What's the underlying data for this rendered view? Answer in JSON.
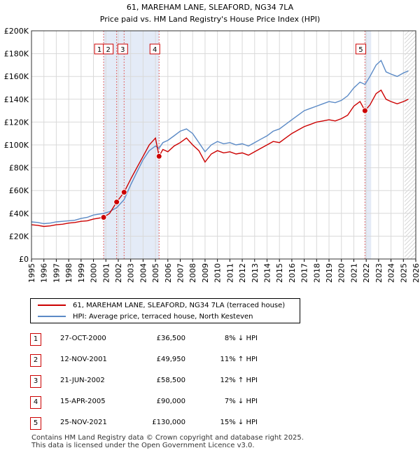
{
  "chart_data": {
    "type": "line",
    "title": "61, MAREHAM LANE, SLEAFORD, NG34 7LA",
    "subtitle": "Price paid vs. HM Land Registry's House Price Index (HPI)",
    "xlim": [
      1995,
      2026
    ],
    "ylim": [
      0,
      200000
    ],
    "x_ticks": [
      "1995",
      "1996",
      "1997",
      "1998",
      "1999",
      "2000",
      "2001",
      "2002",
      "2003",
      "2004",
      "2005",
      "2006",
      "2007",
      "2008",
      "2009",
      "2010",
      "2011",
      "2012",
      "2013",
      "2014",
      "2015",
      "2016",
      "2017",
      "2018",
      "2019",
      "2020",
      "2021",
      "2022",
      "2023",
      "2024",
      "2025",
      "2026"
    ],
    "y_ticks": [
      {
        "value": 0,
        "label": "£0"
      },
      {
        "value": 20000,
        "label": "£20K"
      },
      {
        "value": 40000,
        "label": "£40K"
      },
      {
        "value": 60000,
        "label": "£60K"
      },
      {
        "value": 80000,
        "label": "£80K"
      },
      {
        "value": 100000,
        "label": "£100K"
      },
      {
        "value": 120000,
        "label": "£120K"
      },
      {
        "value": 140000,
        "label": "£140K"
      },
      {
        "value": 160000,
        "label": "£160K"
      },
      {
        "value": 180000,
        "label": "£180K"
      },
      {
        "value": 200000,
        "label": "£200K"
      }
    ],
    "grid": true,
    "shaded_ranges": [
      [
        2000.82,
        2005.29
      ],
      [
        2021.9,
        2022.4
      ]
    ],
    "future_hatch_from": 2025.1,
    "series": [
      {
        "name": "61, MAREHAM LANE, SLEAFORD, NG34 7LA (terraced house)",
        "color": "#cc0000",
        "points": [
          [
            1995.0,
            30000
          ],
          [
            1995.5,
            29500
          ],
          [
            1996.0,
            28500
          ],
          [
            1996.5,
            29000
          ],
          [
            1997.0,
            30000
          ],
          [
            1997.5,
            30500
          ],
          [
            1998.0,
            31500
          ],
          [
            1998.5,
            32000
          ],
          [
            1999.0,
            33000
          ],
          [
            1999.5,
            33500
          ],
          [
            2000.0,
            35000
          ],
          [
            2000.82,
            36500
          ],
          [
            2001.3,
            40000
          ],
          [
            2001.87,
            49950
          ],
          [
            2002.47,
            58500
          ],
          [
            2003.0,
            70000
          ],
          [
            2003.5,
            80000
          ],
          [
            2004.0,
            90000
          ],
          [
            2004.5,
            100000
          ],
          [
            2005.0,
            106000
          ],
          [
            2005.29,
            90000
          ],
          [
            2005.6,
            96000
          ],
          [
            2006.0,
            94000
          ],
          [
            2006.5,
            99000
          ],
          [
            2007.0,
            102000
          ],
          [
            2007.5,
            106000
          ],
          [
            2008.0,
            100000
          ],
          [
            2008.5,
            95000
          ],
          [
            2009.0,
            85000
          ],
          [
            2009.5,
            92000
          ],
          [
            2010.0,
            95000
          ],
          [
            2010.5,
            93000
          ],
          [
            2011.0,
            94000
          ],
          [
            2011.5,
            92000
          ],
          [
            2012.0,
            93000
          ],
          [
            2012.5,
            91000
          ],
          [
            2013.0,
            94000
          ],
          [
            2013.5,
            97000
          ],
          [
            2014.0,
            100000
          ],
          [
            2014.5,
            103000
          ],
          [
            2015.0,
            102000
          ],
          [
            2015.5,
            106000
          ],
          [
            2016.0,
            110000
          ],
          [
            2016.5,
            113000
          ],
          [
            2017.0,
            116000
          ],
          [
            2017.5,
            118000
          ],
          [
            2018.0,
            120000
          ],
          [
            2018.5,
            121000
          ],
          [
            2019.0,
            122000
          ],
          [
            2019.5,
            121000
          ],
          [
            2020.0,
            123000
          ],
          [
            2020.5,
            126000
          ],
          [
            2021.0,
            134000
          ],
          [
            2021.5,
            138000
          ],
          [
            2021.9,
            130000
          ],
          [
            2022.3,
            135000
          ],
          [
            2022.8,
            145000
          ],
          [
            2023.2,
            148000
          ],
          [
            2023.6,
            140000
          ],
          [
            2024.0,
            138000
          ],
          [
            2024.5,
            136000
          ],
          [
            2025.0,
            138000
          ],
          [
            2025.4,
            140000
          ]
        ]
      },
      {
        "name": "HPI: Average price, terraced house, North Kesteven",
        "color": "#5b8ac6",
        "points": [
          [
            1995.0,
            32500
          ],
          [
            1995.5,
            32000
          ],
          [
            1996.0,
            31000
          ],
          [
            1996.5,
            31500
          ],
          [
            1997.0,
            32500
          ],
          [
            1997.5,
            33000
          ],
          [
            1998.0,
            33500
          ],
          [
            1998.5,
            34000
          ],
          [
            1999.0,
            35500
          ],
          [
            1999.5,
            36500
          ],
          [
            2000.0,
            38500
          ],
          [
            2000.82,
            40000
          ],
          [
            2001.3,
            41500
          ],
          [
            2001.87,
            45000
          ],
          [
            2002.47,
            52000
          ],
          [
            2003.0,
            65000
          ],
          [
            2003.5,
            76000
          ],
          [
            2004.0,
            87000
          ],
          [
            2004.5,
            95000
          ],
          [
            2005.0,
            99000
          ],
          [
            2005.29,
            97000
          ],
          [
            2005.6,
            102000
          ],
          [
            2006.0,
            104000
          ],
          [
            2006.5,
            108000
          ],
          [
            2007.0,
            112000
          ],
          [
            2007.5,
            114000
          ],
          [
            2008.0,
            110000
          ],
          [
            2008.5,
            102000
          ],
          [
            2009.0,
            94000
          ],
          [
            2009.5,
            100000
          ],
          [
            2010.0,
            103000
          ],
          [
            2010.5,
            101000
          ],
          [
            2011.0,
            102000
          ],
          [
            2011.5,
            100000
          ],
          [
            2012.0,
            101000
          ],
          [
            2012.5,
            99000
          ],
          [
            2013.0,
            102000
          ],
          [
            2013.5,
            105000
          ],
          [
            2014.0,
            108000
          ],
          [
            2014.5,
            112000
          ],
          [
            2015.0,
            114000
          ],
          [
            2015.5,
            118000
          ],
          [
            2016.0,
            122000
          ],
          [
            2016.5,
            126000
          ],
          [
            2017.0,
            130000
          ],
          [
            2017.5,
            132000
          ],
          [
            2018.0,
            134000
          ],
          [
            2018.5,
            136000
          ],
          [
            2019.0,
            138000
          ],
          [
            2019.5,
            137000
          ],
          [
            2020.0,
            139000
          ],
          [
            2020.5,
            143000
          ],
          [
            2021.0,
            150000
          ],
          [
            2021.5,
            155000
          ],
          [
            2021.9,
            153000
          ],
          [
            2022.3,
            160000
          ],
          [
            2022.8,
            170000
          ],
          [
            2023.2,
            174000
          ],
          [
            2023.6,
            164000
          ],
          [
            2024.0,
            162000
          ],
          [
            2024.5,
            160000
          ],
          [
            2025.0,
            163000
          ],
          [
            2025.4,
            165000
          ]
        ]
      }
    ],
    "sales": [
      {
        "num": "1",
        "x": 2000.82,
        "y": 36500
      },
      {
        "num": "2",
        "x": 2001.87,
        "y": 49950
      },
      {
        "num": "3",
        "x": 2002.47,
        "y": 58500
      },
      {
        "num": "4",
        "x": 2005.29,
        "y": 90000
      },
      {
        "num": "5",
        "x": 2021.9,
        "y": 130000
      }
    ]
  },
  "legend": [
    {
      "label": "61, MAREHAM LANE, SLEAFORD, NG34 7LA (terraced house)",
      "color": "#cc0000"
    },
    {
      "label": "HPI: Average price, terraced house, North Kesteven",
      "color": "#5b8ac6"
    }
  ],
  "transactions": [
    {
      "num": "1",
      "date": "27-OCT-2000",
      "price": "£36,500",
      "hpi": "8% ↓ HPI"
    },
    {
      "num": "2",
      "date": "12-NOV-2001",
      "price": "£49,950",
      "hpi": "11% ↑ HPI"
    },
    {
      "num": "3",
      "date": "21-JUN-2002",
      "price": "£58,500",
      "hpi": "12% ↑ HPI"
    },
    {
      "num": "4",
      "date": "15-APR-2005",
      "price": "£90,000",
      "hpi": "7% ↓ HPI"
    },
    {
      "num": "5",
      "date": "25-NOV-2021",
      "price": "£130,000",
      "hpi": "15% ↓ HPI"
    }
  ],
  "footer": {
    "line1": "Contains HM Land Registry data © Crown copyright and database right 2025.",
    "line2": "This data is licensed under the Open Government Licence v3.0."
  }
}
